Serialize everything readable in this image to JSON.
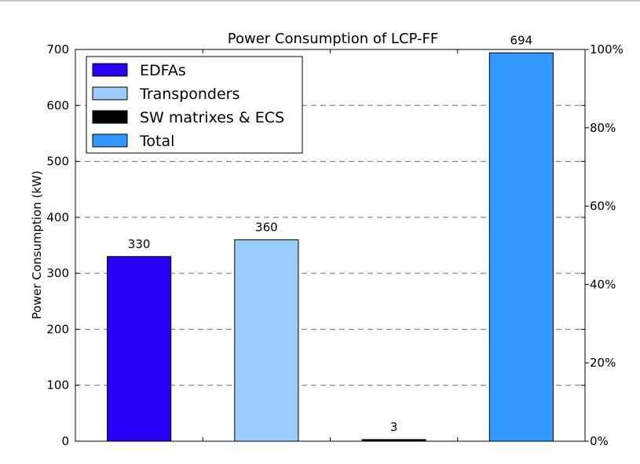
{
  "chart_data": {
    "type": "bar",
    "title": "Power Consumption of LCP-FF",
    "ylabel": "Power Consumption (kW)",
    "xlabel": "",
    "ylim": [
      0,
      700
    ],
    "y_ticks": [
      0,
      100,
      200,
      300,
      400,
      500,
      600,
      700
    ],
    "categories": [
      "EDFAs",
      "Transponders",
      "SW matrixes & ECS",
      "Total"
    ],
    "values": [
      330,
      360,
      3,
      694
    ],
    "data_labels": [
      "330",
      "360",
      "3",
      "694"
    ],
    "colors": [
      "#2a00f5",
      "#99ccff",
      "#000000",
      "#3399ff"
    ],
    "secondary_axis": {
      "ylim": [
        0,
        100
      ],
      "ticks": [
        "0%",
        "20%",
        "40%",
        "60%",
        "80%",
        "100%"
      ],
      "tick_values": [
        0,
        20,
        40,
        60,
        80,
        100
      ]
    },
    "grid": "horizontal-dashed",
    "legend": {
      "position": "top-left",
      "entries": [
        "EDFAs",
        "Transponders",
        "SW matrixes & ECS",
        "Total"
      ]
    }
  }
}
